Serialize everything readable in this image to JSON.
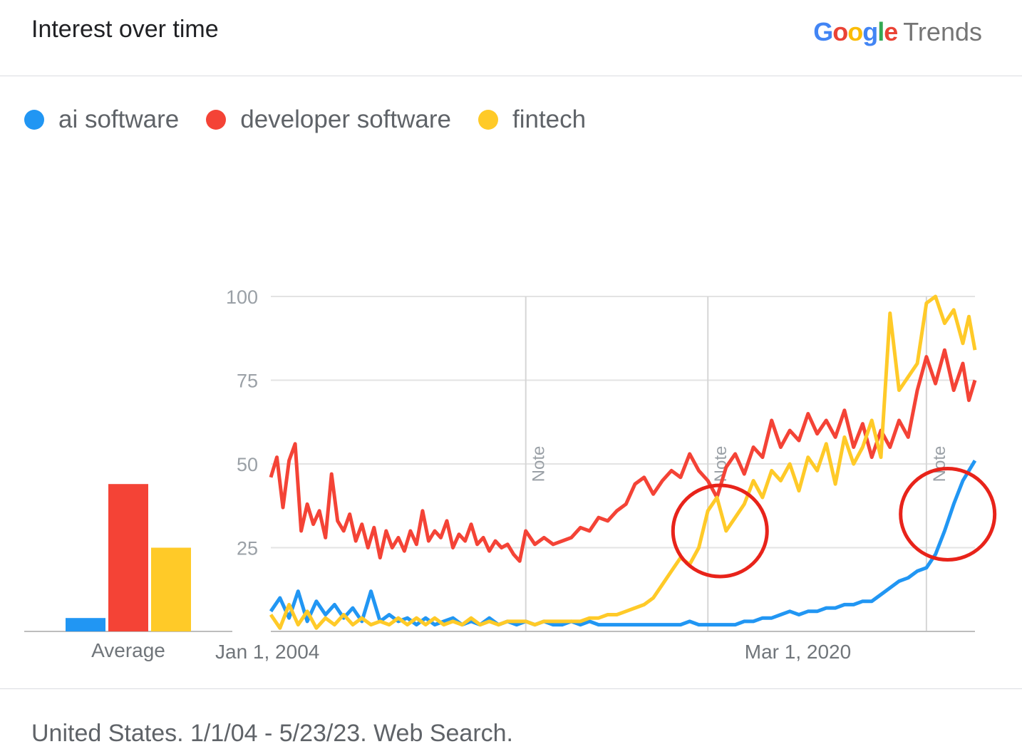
{
  "header": {
    "title": "Interest over time",
    "brand_google": [
      "G",
      "o",
      "o",
      "g",
      "l",
      "e"
    ],
    "brand_google_colors": [
      "#4285F4",
      "#EA4335",
      "#FBBC05",
      "#4285F4",
      "#34A853",
      "#EA4335"
    ],
    "brand_trends": "Trends"
  },
  "legend": [
    {
      "label": "ai software",
      "color": "#2196F3"
    },
    {
      "label": "developer software",
      "color": "#F44336"
    },
    {
      "label": "fintech",
      "color": "#FFCA28"
    }
  ],
  "average_label": "Average",
  "note_label": "Note",
  "footer": {
    "text": "United States. 1/1/04 - 5/23/23. Web Search."
  },
  "chart_data": {
    "type": "line",
    "x_range": [
      "2004-01",
      "2023-05"
    ],
    "x_tick_labels": [
      {
        "label": "Jan 1, 2004",
        "date": "2004-01"
      },
      {
        "label": "Mar 1, 2020",
        "date": "2020-03"
      }
    ],
    "ylim": [
      0,
      100
    ],
    "y_ticks": [
      25,
      50,
      75,
      100
    ],
    "grid": true,
    "notes": [
      {
        "label": "Note",
        "date": "2011-01"
      },
      {
        "label": "Note",
        "date": "2016-01"
      },
      {
        "label": "Note",
        "date": "2022-01"
      }
    ],
    "highlights": [
      {
        "date": "2016-05",
        "value": 30
      },
      {
        "date": "2022-08",
        "value": 35
      }
    ],
    "averages": [
      {
        "name": "ai software",
        "value": 4
      },
      {
        "name": "developer software",
        "value": 44
      },
      {
        "name": "fintech",
        "value": 25
      }
    ],
    "series": [
      {
        "name": "ai software",
        "color": "#2196F3",
        "points": [
          [
            "2004-01",
            6
          ],
          [
            "2004-04",
            10
          ],
          [
            "2004-07",
            4
          ],
          [
            "2004-10",
            12
          ],
          [
            "2005-01",
            3
          ],
          [
            "2005-04",
            9
          ],
          [
            "2005-07",
            5
          ],
          [
            "2005-10",
            8
          ],
          [
            "2006-01",
            4
          ],
          [
            "2006-04",
            7
          ],
          [
            "2006-07",
            3
          ],
          [
            "2006-10",
            12
          ],
          [
            "2007-01",
            3
          ],
          [
            "2007-04",
            5
          ],
          [
            "2007-07",
            3
          ],
          [
            "2007-10",
            4
          ],
          [
            "2008-01",
            2
          ],
          [
            "2008-04",
            4
          ],
          [
            "2008-07",
            2
          ],
          [
            "2008-10",
            3
          ],
          [
            "2009-01",
            4
          ],
          [
            "2009-04",
            2
          ],
          [
            "2009-07",
            3
          ],
          [
            "2009-10",
            2
          ],
          [
            "2010-01",
            4
          ],
          [
            "2010-04",
            2
          ],
          [
            "2010-07",
            3
          ],
          [
            "2010-10",
            2
          ],
          [
            "2011-01",
            3
          ],
          [
            "2011-04",
            2
          ],
          [
            "2011-07",
            3
          ],
          [
            "2011-10",
            2
          ],
          [
            "2012-01",
            2
          ],
          [
            "2012-04",
            3
          ],
          [
            "2012-07",
            2
          ],
          [
            "2012-10",
            3
          ],
          [
            "2013-01",
            2
          ],
          [
            "2013-04",
            2
          ],
          [
            "2013-07",
            2
          ],
          [
            "2013-10",
            2
          ],
          [
            "2014-01",
            2
          ],
          [
            "2014-04",
            2
          ],
          [
            "2014-07",
            2
          ],
          [
            "2014-10",
            2
          ],
          [
            "2015-01",
            2
          ],
          [
            "2015-04",
            2
          ],
          [
            "2015-07",
            3
          ],
          [
            "2015-10",
            2
          ],
          [
            "2016-01",
            2
          ],
          [
            "2016-04",
            2
          ],
          [
            "2016-07",
            2
          ],
          [
            "2016-10",
            2
          ],
          [
            "2017-01",
            3
          ],
          [
            "2017-04",
            3
          ],
          [
            "2017-07",
            4
          ],
          [
            "2017-10",
            4
          ],
          [
            "2018-01",
            5
          ],
          [
            "2018-04",
            6
          ],
          [
            "2018-07",
            5
          ],
          [
            "2018-10",
            6
          ],
          [
            "2019-01",
            6
          ],
          [
            "2019-04",
            7
          ],
          [
            "2019-07",
            7
          ],
          [
            "2019-10",
            8
          ],
          [
            "2020-01",
            8
          ],
          [
            "2020-04",
            9
          ],
          [
            "2020-07",
            9
          ],
          [
            "2020-10",
            11
          ],
          [
            "2021-01",
            13
          ],
          [
            "2021-04",
            15
          ],
          [
            "2021-07",
            16
          ],
          [
            "2021-10",
            18
          ],
          [
            "2022-01",
            19
          ],
          [
            "2022-04",
            23
          ],
          [
            "2022-07",
            30
          ],
          [
            "2022-10",
            38
          ],
          [
            "2023-01",
            45
          ],
          [
            "2023-05",
            51
          ]
        ]
      },
      {
        "name": "developer software",
        "color": "#F44336",
        "points": [
          [
            "2004-01",
            46
          ],
          [
            "2004-03",
            52
          ],
          [
            "2004-05",
            37
          ],
          [
            "2004-07",
            51
          ],
          [
            "2004-09",
            56
          ],
          [
            "2004-11",
            30
          ],
          [
            "2005-01",
            38
          ],
          [
            "2005-03",
            32
          ],
          [
            "2005-05",
            36
          ],
          [
            "2005-07",
            28
          ],
          [
            "2005-09",
            47
          ],
          [
            "2005-11",
            33
          ],
          [
            "2006-01",
            30
          ],
          [
            "2006-03",
            35
          ],
          [
            "2006-05",
            27
          ],
          [
            "2006-07",
            32
          ],
          [
            "2006-09",
            25
          ],
          [
            "2006-11",
            31
          ],
          [
            "2007-01",
            22
          ],
          [
            "2007-03",
            30
          ],
          [
            "2007-05",
            25
          ],
          [
            "2007-07",
            28
          ],
          [
            "2007-09",
            24
          ],
          [
            "2007-11",
            30
          ],
          [
            "2008-01",
            26
          ],
          [
            "2008-03",
            36
          ],
          [
            "2008-05",
            27
          ],
          [
            "2008-07",
            30
          ],
          [
            "2008-09",
            28
          ],
          [
            "2008-11",
            33
          ],
          [
            "2009-01",
            25
          ],
          [
            "2009-03",
            29
          ],
          [
            "2009-05",
            27
          ],
          [
            "2009-07",
            32
          ],
          [
            "2009-09",
            26
          ],
          [
            "2009-11",
            28
          ],
          [
            "2010-01",
            24
          ],
          [
            "2010-03",
            27
          ],
          [
            "2010-05",
            25
          ],
          [
            "2010-07",
            26
          ],
          [
            "2010-09",
            23
          ],
          [
            "2010-11",
            21
          ],
          [
            "2011-01",
            30
          ],
          [
            "2011-04",
            26
          ],
          [
            "2011-07",
            28
          ],
          [
            "2011-10",
            26
          ],
          [
            "2012-01",
            27
          ],
          [
            "2012-04",
            28
          ],
          [
            "2012-07",
            31
          ],
          [
            "2012-10",
            30
          ],
          [
            "2013-01",
            34
          ],
          [
            "2013-04",
            33
          ],
          [
            "2013-07",
            36
          ],
          [
            "2013-10",
            38
          ],
          [
            "2014-01",
            44
          ],
          [
            "2014-04",
            46
          ],
          [
            "2014-07",
            41
          ],
          [
            "2014-10",
            45
          ],
          [
            "2015-01",
            48
          ],
          [
            "2015-04",
            46
          ],
          [
            "2015-07",
            53
          ],
          [
            "2015-10",
            48
          ],
          [
            "2016-01",
            45
          ],
          [
            "2016-04",
            40
          ],
          [
            "2016-07",
            49
          ],
          [
            "2016-10",
            53
          ],
          [
            "2017-01",
            47
          ],
          [
            "2017-04",
            55
          ],
          [
            "2017-07",
            52
          ],
          [
            "2017-10",
            63
          ],
          [
            "2018-01",
            55
          ],
          [
            "2018-04",
            60
          ],
          [
            "2018-07",
            57
          ],
          [
            "2018-10",
            65
          ],
          [
            "2019-01",
            59
          ],
          [
            "2019-04",
            63
          ],
          [
            "2019-07",
            58
          ],
          [
            "2019-10",
            66
          ],
          [
            "2020-01",
            55
          ],
          [
            "2020-04",
            62
          ],
          [
            "2020-07",
            52
          ],
          [
            "2020-10",
            60
          ],
          [
            "2021-01",
            55
          ],
          [
            "2021-04",
            63
          ],
          [
            "2021-07",
            58
          ],
          [
            "2021-10",
            72
          ],
          [
            "2022-01",
            82
          ],
          [
            "2022-04",
            74
          ],
          [
            "2022-07",
            84
          ],
          [
            "2022-10",
            72
          ],
          [
            "2023-01",
            80
          ],
          [
            "2023-03",
            69
          ],
          [
            "2023-05",
            75
          ]
        ]
      },
      {
        "name": "fintech",
        "color": "#FFCA28",
        "points": [
          [
            "2004-01",
            5
          ],
          [
            "2004-04",
            1
          ],
          [
            "2004-07",
            8
          ],
          [
            "2004-10",
            2
          ],
          [
            "2005-01",
            6
          ],
          [
            "2005-04",
            1
          ],
          [
            "2005-07",
            4
          ],
          [
            "2005-10",
            2
          ],
          [
            "2006-01",
            5
          ],
          [
            "2006-04",
            2
          ],
          [
            "2006-07",
            4
          ],
          [
            "2006-10",
            2
          ],
          [
            "2007-01",
            3
          ],
          [
            "2007-04",
            2
          ],
          [
            "2007-07",
            4
          ],
          [
            "2007-10",
            2
          ],
          [
            "2008-01",
            4
          ],
          [
            "2008-04",
            2
          ],
          [
            "2008-07",
            4
          ],
          [
            "2008-10",
            2
          ],
          [
            "2009-01",
            3
          ],
          [
            "2009-04",
            2
          ],
          [
            "2009-07",
            4
          ],
          [
            "2009-10",
            2
          ],
          [
            "2010-01",
            3
          ],
          [
            "2010-04",
            2
          ],
          [
            "2010-07",
            3
          ],
          [
            "2010-10",
            3
          ],
          [
            "2011-01",
            3
          ],
          [
            "2011-04",
            2
          ],
          [
            "2011-07",
            3
          ],
          [
            "2011-10",
            3
          ],
          [
            "2012-01",
            3
          ],
          [
            "2012-04",
            3
          ],
          [
            "2012-07",
            3
          ],
          [
            "2012-10",
            4
          ],
          [
            "2013-01",
            4
          ],
          [
            "2013-04",
            5
          ],
          [
            "2013-07",
            5
          ],
          [
            "2013-10",
            6
          ],
          [
            "2014-01",
            7
          ],
          [
            "2014-04",
            8
          ],
          [
            "2014-07",
            10
          ],
          [
            "2014-10",
            14
          ],
          [
            "2015-01",
            18
          ],
          [
            "2015-04",
            22
          ],
          [
            "2015-07",
            20
          ],
          [
            "2015-10",
            25
          ],
          [
            "2016-01",
            36
          ],
          [
            "2016-04",
            40
          ],
          [
            "2016-07",
            30
          ],
          [
            "2016-10",
            34
          ],
          [
            "2017-01",
            38
          ],
          [
            "2017-04",
            45
          ],
          [
            "2017-07",
            40
          ],
          [
            "2017-10",
            48
          ],
          [
            "2018-01",
            45
          ],
          [
            "2018-04",
            50
          ],
          [
            "2018-07",
            42
          ],
          [
            "2018-10",
            52
          ],
          [
            "2019-01",
            48
          ],
          [
            "2019-04",
            56
          ],
          [
            "2019-07",
            44
          ],
          [
            "2019-10",
            58
          ],
          [
            "2020-01",
            50
          ],
          [
            "2020-04",
            55
          ],
          [
            "2020-07",
            63
          ],
          [
            "2020-10",
            52
          ],
          [
            "2021-01",
            95
          ],
          [
            "2021-04",
            72
          ],
          [
            "2021-07",
            76
          ],
          [
            "2021-10",
            80
          ],
          [
            "2022-01",
            98
          ],
          [
            "2022-04",
            100
          ],
          [
            "2022-07",
            92
          ],
          [
            "2022-10",
            96
          ],
          [
            "2023-01",
            86
          ],
          [
            "2023-03",
            94
          ],
          [
            "2023-05",
            84
          ]
        ]
      }
    ]
  }
}
